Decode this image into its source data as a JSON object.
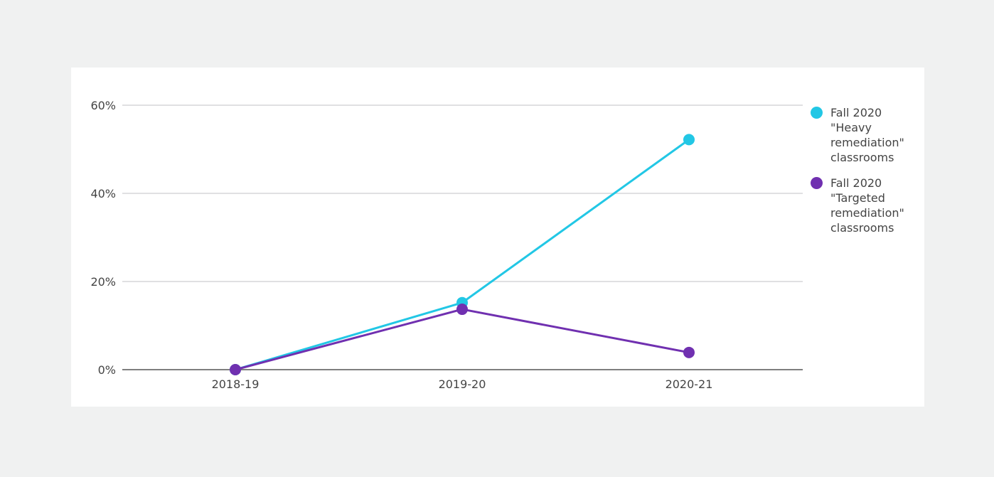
{
  "chart_data": {
    "type": "line",
    "categories": [
      "2018-19",
      "2019-20",
      "2020-21"
    ],
    "yticks": [
      "0%",
      "20%",
      "40%",
      "60%"
    ],
    "ylim": [
      0,
      60
    ],
    "y_unit": "%",
    "grid": true,
    "legend_position": "right",
    "series": [
      {
        "name": "Fall 2020 \"Heavy remediation\" classrooms",
        "name_lines": [
          "Fall 2020",
          "\"Heavy",
          "remediation\"",
          "classrooms"
        ],
        "color": "#22c7e5",
        "values": [
          0,
          15.2,
          52.2
        ]
      },
      {
        "name": "Fall 2020 \"Targeted remediation\" classrooms",
        "name_lines": [
          "Fall 2020",
          "\"Targeted",
          "remediation\"",
          "classrooms"
        ],
        "color": "#7030b0",
        "values": [
          0,
          13.7,
          3.9
        ]
      }
    ]
  }
}
